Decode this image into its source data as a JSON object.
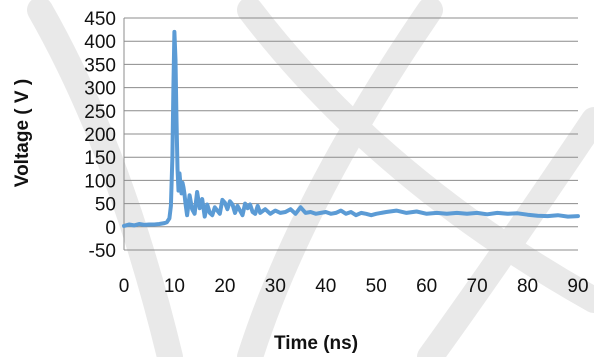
{
  "chart_data": {
    "type": "line",
    "title": "",
    "xlabel": "Time (ns)",
    "ylabel": "Voltage ( V )",
    "xlim": [
      0,
      90
    ],
    "ylim": [
      -50,
      450
    ],
    "x_ticks": [
      "0",
      "10",
      "20",
      "30",
      "40",
      "50",
      "60",
      "70",
      "80",
      "90"
    ],
    "y_ticks": [
      "-50",
      "0",
      "50",
      "100",
      "150",
      "200",
      "250",
      "300",
      "350",
      "400",
      "450"
    ],
    "grid": "horizontal",
    "legend": "none",
    "colors": {
      "series": "#5b9bd5",
      "grid": "#8c8c8c"
    },
    "series": [
      {
        "color": "#5b9bd5",
        "x": [
          0,
          1,
          2,
          3,
          4,
          5,
          6,
          7,
          8,
          8.5,
          9,
          9.3,
          9.6,
          9.8,
          10,
          10.2,
          10.4,
          10.6,
          10.8,
          11,
          11.2,
          11.4,
          11.6,
          11.8,
          12,
          12.2,
          12.5,
          13,
          13.5,
          14,
          14.5,
          15,
          15.5,
          16,
          16.5,
          17,
          17.5,
          18,
          18.5,
          19,
          19.5,
          20,
          20.5,
          21,
          21.5,
          22,
          22.5,
          23,
          23.5,
          24,
          24.5,
          25,
          25.5,
          26,
          26.5,
          27,
          28,
          29,
          30,
          31,
          32,
          33,
          34,
          35,
          36,
          37,
          38,
          39,
          40,
          41,
          42,
          43,
          44,
          45,
          46,
          47,
          48,
          49,
          50,
          52,
          54,
          56,
          58,
          60,
          62,
          64,
          66,
          68,
          70,
          72,
          74,
          76,
          78,
          80,
          82,
          84,
          86,
          88,
          90
        ],
        "values": [
          2,
          5,
          3,
          6,
          4,
          5,
          5,
          6,
          8,
          10,
          18,
          45,
          150,
          300,
          420,
          360,
          230,
          125,
          78,
          115,
          90,
          72,
          95,
          85,
          70,
          50,
          25,
          68,
          38,
          28,
          75,
          40,
          60,
          22,
          48,
          30,
          25,
          42,
          35,
          28,
          58,
          52,
          38,
          55,
          48,
          30,
          45,
          35,
          25,
          50,
          40,
          48,
          32,
          28,
          45,
          30,
          38,
          28,
          35,
          30,
          32,
          38,
          28,
          42,
          30,
          32,
          28,
          30,
          32,
          28,
          30,
          35,
          28,
          32,
          25,
          30,
          28,
          25,
          28,
          32,
          35,
          30,
          33,
          28,
          30,
          28,
          30,
          28,
          30,
          27,
          30,
          28,
          29,
          26,
          24,
          23,
          25,
          22,
          23
        ]
      }
    ]
  }
}
